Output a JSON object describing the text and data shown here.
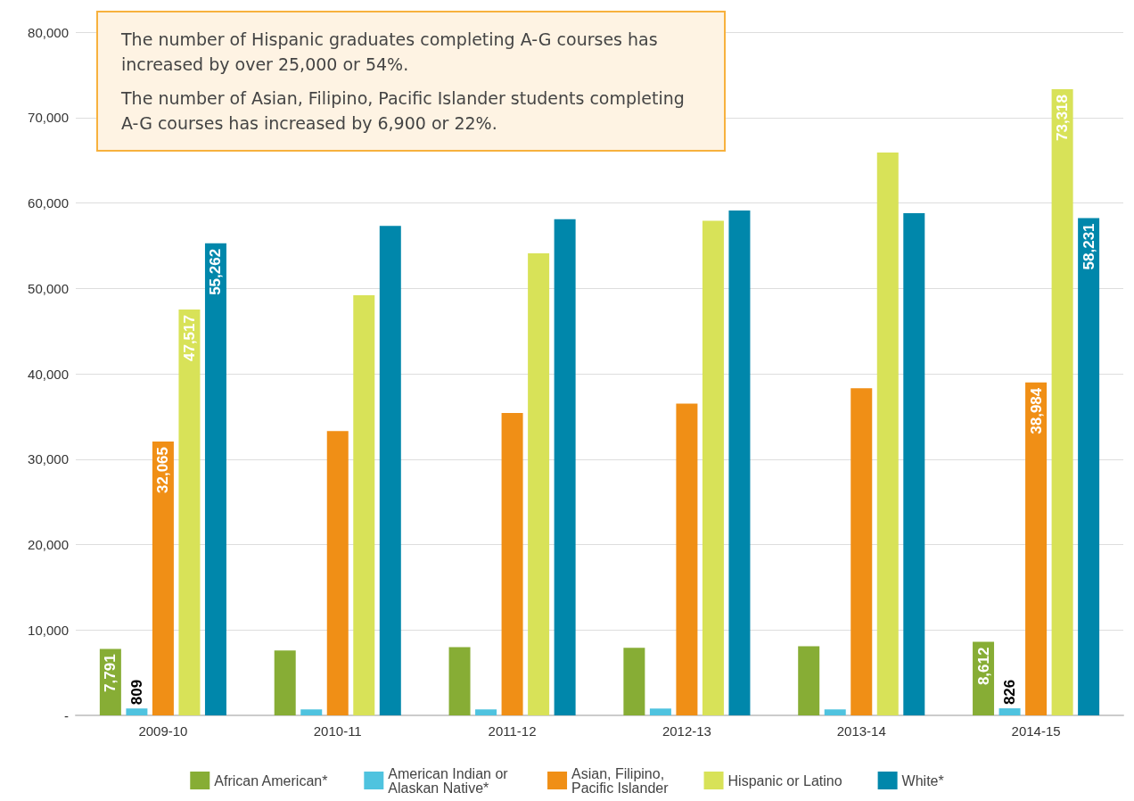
{
  "chart_data": {
    "type": "bar",
    "categories": [
      "2009-10",
      "2010-11",
      "2011-12",
      "2012-13",
      "2013-14",
      "2014-15"
    ],
    "series": [
      {
        "name": "African American*",
        "color": "#87ad35",
        "values": [
          7791,
          7600,
          8000,
          7900,
          8100,
          8612
        ],
        "value_labels": [
          "7,791",
          null,
          null,
          null,
          null,
          "8,612"
        ]
      },
      {
        "name": "American Indian or Alaskan Native*",
        "color": "#4fc3df",
        "values": [
          809,
          700,
          700,
          800,
          700,
          826
        ],
        "value_labels": [
          "809",
          null,
          null,
          null,
          null,
          "826"
        ]
      },
      {
        "name": "Asian, Filipino, Pacific Islander",
        "color": "#f08f16",
        "values": [
          32065,
          33300,
          35400,
          36500,
          38300,
          38984
        ],
        "value_labels": [
          "32,065",
          null,
          null,
          null,
          null,
          "38,984"
        ]
      },
      {
        "name": "Hispanic or Latino",
        "color": "#d8e258",
        "values": [
          47517,
          49200,
          54100,
          57900,
          65900,
          73318
        ],
        "value_labels": [
          "47,517",
          null,
          null,
          null,
          null,
          "73,318"
        ]
      },
      {
        "name": "White*",
        "color": "#0087ab",
        "values": [
          55262,
          57300,
          58100,
          59100,
          58800,
          58231
        ],
        "value_labels": [
          "55,262",
          null,
          null,
          null,
          null,
          "58,231"
        ]
      }
    ],
    "ylim": [
      0,
      80000
    ],
    "yticks": [
      {
        "value": 0,
        "label": "-"
      },
      {
        "value": 10000,
        "label": "10,000"
      },
      {
        "value": 20000,
        "label": "20,000"
      },
      {
        "value": 30000,
        "label": "30,000"
      },
      {
        "value": 40000,
        "label": "40,000"
      },
      {
        "value": 50000,
        "label": "50,000"
      },
      {
        "value": 60000,
        "label": "60,000"
      },
      {
        "value": 70000,
        "label": "70,000"
      },
      {
        "value": 80000,
        "label": "80,000"
      }
    ],
    "grid": "y",
    "legend": "bottom",
    "annotations": [
      "The number of Hispanic graduates completing A-G courses has increased by over 25,000 or 54%.",
      "The number of Asian, Filipino, Pacific Islander students completing A-G courses has increased by 6,900 or 22%."
    ]
  }
}
